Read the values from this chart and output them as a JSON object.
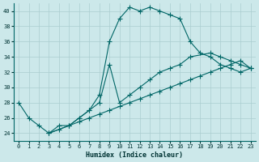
{
  "xlabel": "Humidex (Indice chaleur)",
  "bg_color": "#cce8ea",
  "grid_color": "#aacdd0",
  "line_color": "#006666",
  "xlim": [
    -0.5,
    23.5
  ],
  "ylim": [
    23,
    41
  ],
  "xticks": [
    0,
    1,
    2,
    3,
    4,
    5,
    6,
    7,
    8,
    9,
    10,
    11,
    12,
    13,
    14,
    15,
    16,
    17,
    18,
    19,
    20,
    21,
    22,
    23
  ],
  "yticks": [
    24,
    26,
    28,
    30,
    32,
    34,
    36,
    38,
    40
  ],
  "lines": [
    {
      "x": [
        0,
        1,
        2,
        3,
        5,
        6,
        7,
        8,
        9,
        10,
        11,
        12,
        13,
        14,
        15,
        16,
        17,
        18,
        19,
        20,
        21,
        22,
        23
      ],
      "y": [
        28,
        26,
        25,
        24,
        25,
        26,
        27,
        29,
        36,
        39,
        40.5,
        40,
        40.5,
        40,
        39.5,
        39,
        36,
        34.5,
        34,
        33,
        32.5,
        32,
        32.5
      ]
    },
    {
      "x": [
        3,
        4,
        5,
        6,
        7,
        8,
        9,
        10,
        11,
        12,
        13,
        14,
        15,
        16,
        17,
        19,
        20,
        21,
        22,
        23
      ],
      "y": [
        24,
        25,
        25,
        26,
        27,
        28,
        33,
        28,
        29,
        30,
        31,
        32,
        32.5,
        33,
        34,
        34.5,
        34,
        33.5,
        33,
        32.5
      ]
    },
    {
      "x": [
        3,
        4,
        5,
        6,
        7,
        8,
        9,
        10,
        11,
        12,
        13,
        14,
        15,
        16,
        17,
        18,
        19,
        20,
        21,
        22,
        23
      ],
      "y": [
        24,
        24.5,
        25,
        25.5,
        26,
        26.5,
        27,
        27.5,
        28,
        28.5,
        29,
        29.5,
        30,
        30.5,
        31,
        31.5,
        32,
        32.5,
        33,
        33.5,
        32.5
      ]
    }
  ]
}
